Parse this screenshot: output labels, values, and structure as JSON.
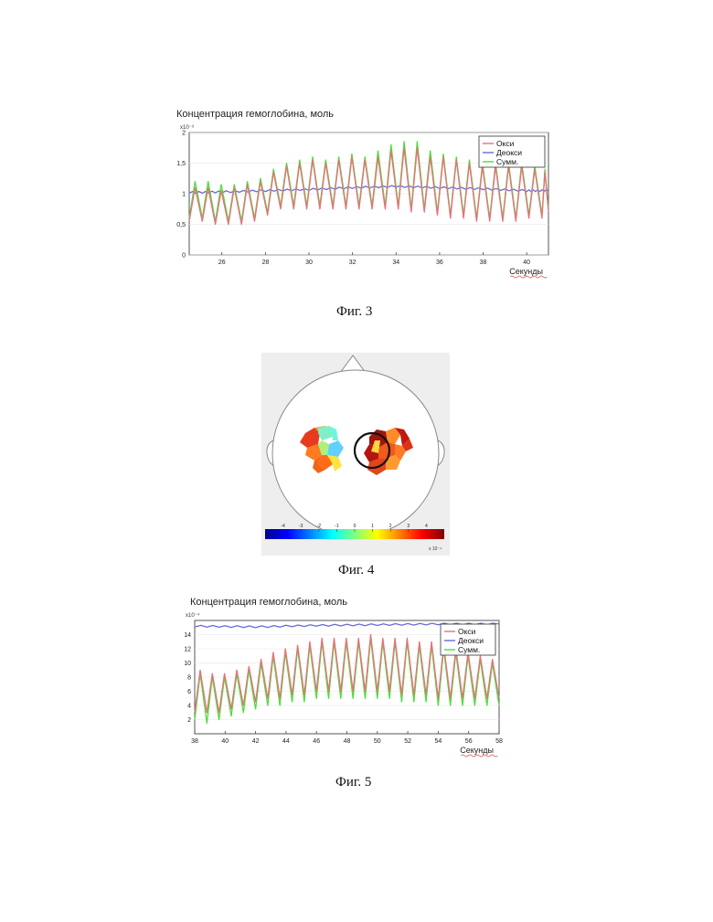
{
  "colors": {
    "oxy": "#e8707a",
    "deoxy": "#6a6ad8",
    "sum": "#4ddc3c",
    "frame": "#555555",
    "grid": "#e4e4e4"
  },
  "fig3": {
    "caption": "Фиг. 3",
    "title": "Концентрация гемоглобина, моль",
    "scale_label": "x10⁻³",
    "xlabel": "Секунды",
    "legend": [
      "Окси",
      "Деокси",
      "Сумм."
    ]
  },
  "fig4": {
    "caption": "Фиг. 4",
    "colorbar_ticks": [
      "-4",
      "-3",
      "-2",
      "-1",
      "0",
      "1",
      "2",
      "3",
      "4"
    ],
    "colorbar_scale": "x 10⁻⁴"
  },
  "fig5": {
    "caption": "Фиг. 5",
    "title": "Концентрация гемоглобина, моль",
    "scale_label": "x10⁻⁴",
    "xlabel": "Секунды",
    "legend": [
      "Окси",
      "Деокси",
      "Сумм."
    ]
  },
  "chart_data": [
    {
      "type": "line",
      "title": "Концентрация гемоглобина, моль",
      "xlabel": "Секунды",
      "ylabel": "",
      "scale": "x10⁻³",
      "xlim": [
        24.5,
        41
      ],
      "ylim": [
        0,
        2
      ],
      "xticks": [
        "26",
        "28",
        "30",
        "32",
        "34",
        "36",
        "38",
        "40"
      ],
      "yticks": [
        "0",
        "0,5",
        "1",
        "1,5",
        "2"
      ],
      "legend_position": "top-right",
      "series": [
        {
          "name": "Окси",
          "color": "#e8707a",
          "x": [
            24.5,
            25.1,
            25.7,
            26.3,
            26.9,
            27.5,
            28.1,
            28.7,
            29.3,
            29.9,
            30.5,
            31.1,
            31.7,
            32.3,
            32.9,
            33.5,
            34.1,
            34.7,
            35.3,
            35.9,
            36.5,
            37.1,
            37.7,
            38.3,
            38.9,
            39.5,
            40.1,
            40.7,
            41.0
          ],
          "peak": [
            1.1,
            1.1,
            1.05,
            1.1,
            1.15,
            1.2,
            1.35,
            1.45,
            1.5,
            1.55,
            1.5,
            1.55,
            1.6,
            1.55,
            1.6,
            1.7,
            1.75,
            1.75,
            1.6,
            1.6,
            1.55,
            1.5,
            1.45,
            1.45,
            1.45,
            1.45,
            1.4,
            1.35,
            1.35
          ],
          "trough": [
            0.55,
            0.55,
            0.5,
            0.5,
            0.5,
            0.55,
            0.65,
            0.75,
            0.75,
            0.75,
            0.75,
            0.75,
            0.75,
            0.75,
            0.75,
            0.75,
            0.75,
            0.7,
            0.7,
            0.65,
            0.6,
            0.6,
            0.55,
            0.55,
            0.55,
            0.55,
            0.6,
            0.6,
            0.7
          ]
        },
        {
          "name": "Деокси",
          "color": "#6a6ad8",
          "x": [
            24.5,
            26,
            28,
            30,
            32,
            34,
            36,
            38,
            40,
            41
          ],
          "y": [
            1.02,
            1.03,
            1.05,
            1.07,
            1.1,
            1.12,
            1.1,
            1.08,
            1.05,
            1.05
          ]
        },
        {
          "name": "Сумм.",
          "color": "#4ddc3c",
          "x": [
            24.5,
            25.1,
            25.7,
            26.3,
            26.9,
            27.5,
            28.1,
            28.7,
            29.3,
            29.9,
            30.5,
            31.1,
            31.7,
            32.3,
            32.9,
            33.5,
            34.1,
            34.7,
            35.3,
            35.9,
            36.5,
            37.1,
            37.7,
            38.3,
            38.9,
            39.5,
            40.1,
            40.7,
            41.0
          ],
          "peak": [
            1.2,
            1.2,
            1.15,
            1.15,
            1.2,
            1.25,
            1.4,
            1.5,
            1.55,
            1.6,
            1.55,
            1.6,
            1.65,
            1.6,
            1.7,
            1.8,
            1.85,
            1.85,
            1.7,
            1.65,
            1.6,
            1.55,
            1.5,
            1.5,
            1.5,
            1.5,
            1.45,
            1.4,
            1.4
          ],
          "trough": [
            0.6,
            0.6,
            0.55,
            0.55,
            0.55,
            0.6,
            0.7,
            0.8,
            0.8,
            0.8,
            0.8,
            0.8,
            0.8,
            0.8,
            0.8,
            0.8,
            0.8,
            0.75,
            0.75,
            0.7,
            0.65,
            0.65,
            0.6,
            0.6,
            0.6,
            0.6,
            0.65,
            0.65,
            0.75
          ]
        }
      ]
    },
    {
      "type": "heatmap",
      "colorbar_ticks": [
        -4,
        -3,
        -2,
        -1,
        0,
        1,
        2,
        3,
        4
      ],
      "colorbar_scale": "x 10⁻⁴",
      "colormap": "jet"
    },
    {
      "type": "line",
      "title": "Концентрация гемоглобина, моль",
      "xlabel": "Секунды",
      "ylabel": "",
      "scale": "x10⁻⁴",
      "xlim": [
        38,
        58
      ],
      "ylim": [
        0,
        16
      ],
      "xticks": [
        "38",
        "40",
        "42",
        "44",
        "46",
        "48",
        "50",
        "52",
        "54",
        "56",
        "58"
      ],
      "yticks": [
        "2",
        "4",
        "6",
        "8",
        "10",
        "12",
        "14"
      ],
      "legend_position": "top-right",
      "series": [
        {
          "name": "Окси",
          "color": "#e8707a",
          "x": [
            38,
            38.8,
            39.6,
            40.4,
            41.2,
            42,
            42.8,
            43.6,
            44.4,
            45.2,
            46,
            46.8,
            47.6,
            48.4,
            49.2,
            50,
            50.8,
            51.6,
            52.4,
            53.2,
            54,
            54.8,
            55.6,
            56.4,
            57.2,
            58
          ],
          "peak": [
            9,
            8.5,
            8.5,
            9,
            9.5,
            10.5,
            11.5,
            12,
            12.5,
            13,
            13.5,
            13.5,
            13.5,
            13.5,
            14,
            13.5,
            13.5,
            13.5,
            13,
            13,
            12.5,
            12,
            11.5,
            11,
            10.5,
            10
          ],
          "trough": [
            3,
            3,
            3,
            3.5,
            4,
            4.5,
            5,
            5,
            5.5,
            5.5,
            6,
            6,
            6,
            6,
            6,
            6,
            6,
            5.5,
            5.5,
            5.5,
            5,
            5,
            5,
            5,
            5,
            5
          ]
        },
        {
          "name": "Деокси",
          "color": "#6a6ad8",
          "x": [
            38,
            42,
            46,
            50,
            54,
            58
          ],
          "y": [
            15.2,
            15.1,
            15.3,
            15.4,
            15.5,
            15.5
          ]
        },
        {
          "name": "Сумм.",
          "color": "#4ddc3c",
          "x": [
            38,
            38.8,
            39.6,
            40.4,
            41.2,
            42,
            42.8,
            43.6,
            44.4,
            45.2,
            46,
            46.8,
            47.6,
            48.4,
            49.2,
            50,
            50.8,
            51.6,
            52.4,
            53.2,
            54,
            54.8,
            55.6,
            56.4,
            57.2,
            58
          ],
          "peak": [
            8.5,
            8,
            8,
            8.5,
            9,
            10,
            11,
            11.5,
            12,
            12.5,
            13,
            13,
            13,
            13,
            13.5,
            13,
            13,
            13,
            12.5,
            12.5,
            12,
            11.5,
            11,
            10.5,
            10,
            9.5
          ],
          "trough": [
            2,
            1.5,
            2,
            2.5,
            3,
            3.5,
            4,
            4,
            4.5,
            4.5,
            5,
            5,
            5,
            5,
            5,
            5,
            5,
            4.5,
            4.5,
            4.5,
            4,
            4,
            4,
            4,
            4,
            4
          ]
        }
      ]
    }
  ]
}
